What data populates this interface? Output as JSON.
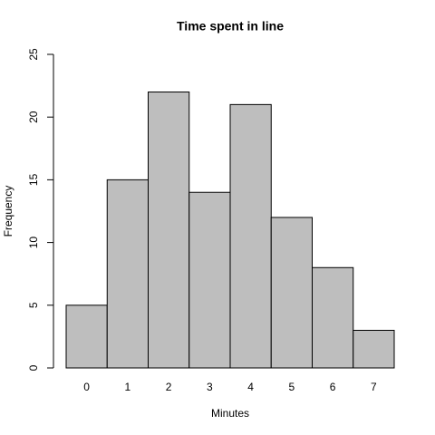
{
  "chart_data": {
    "type": "bar",
    "title": "Time spent in line",
    "x_label": "Minutes",
    "y_label": "Frequency",
    "categories": [
      "0",
      "1",
      "2",
      "3",
      "4",
      "5",
      "6",
      "7"
    ],
    "values": [
      5,
      15,
      22,
      14,
      21,
      12,
      8,
      3
    ],
    "color": "#bebebe",
    "ylim": [
      0,
      25
    ],
    "yticks": [
      0,
      5,
      10,
      15,
      20,
      25
    ]
  }
}
